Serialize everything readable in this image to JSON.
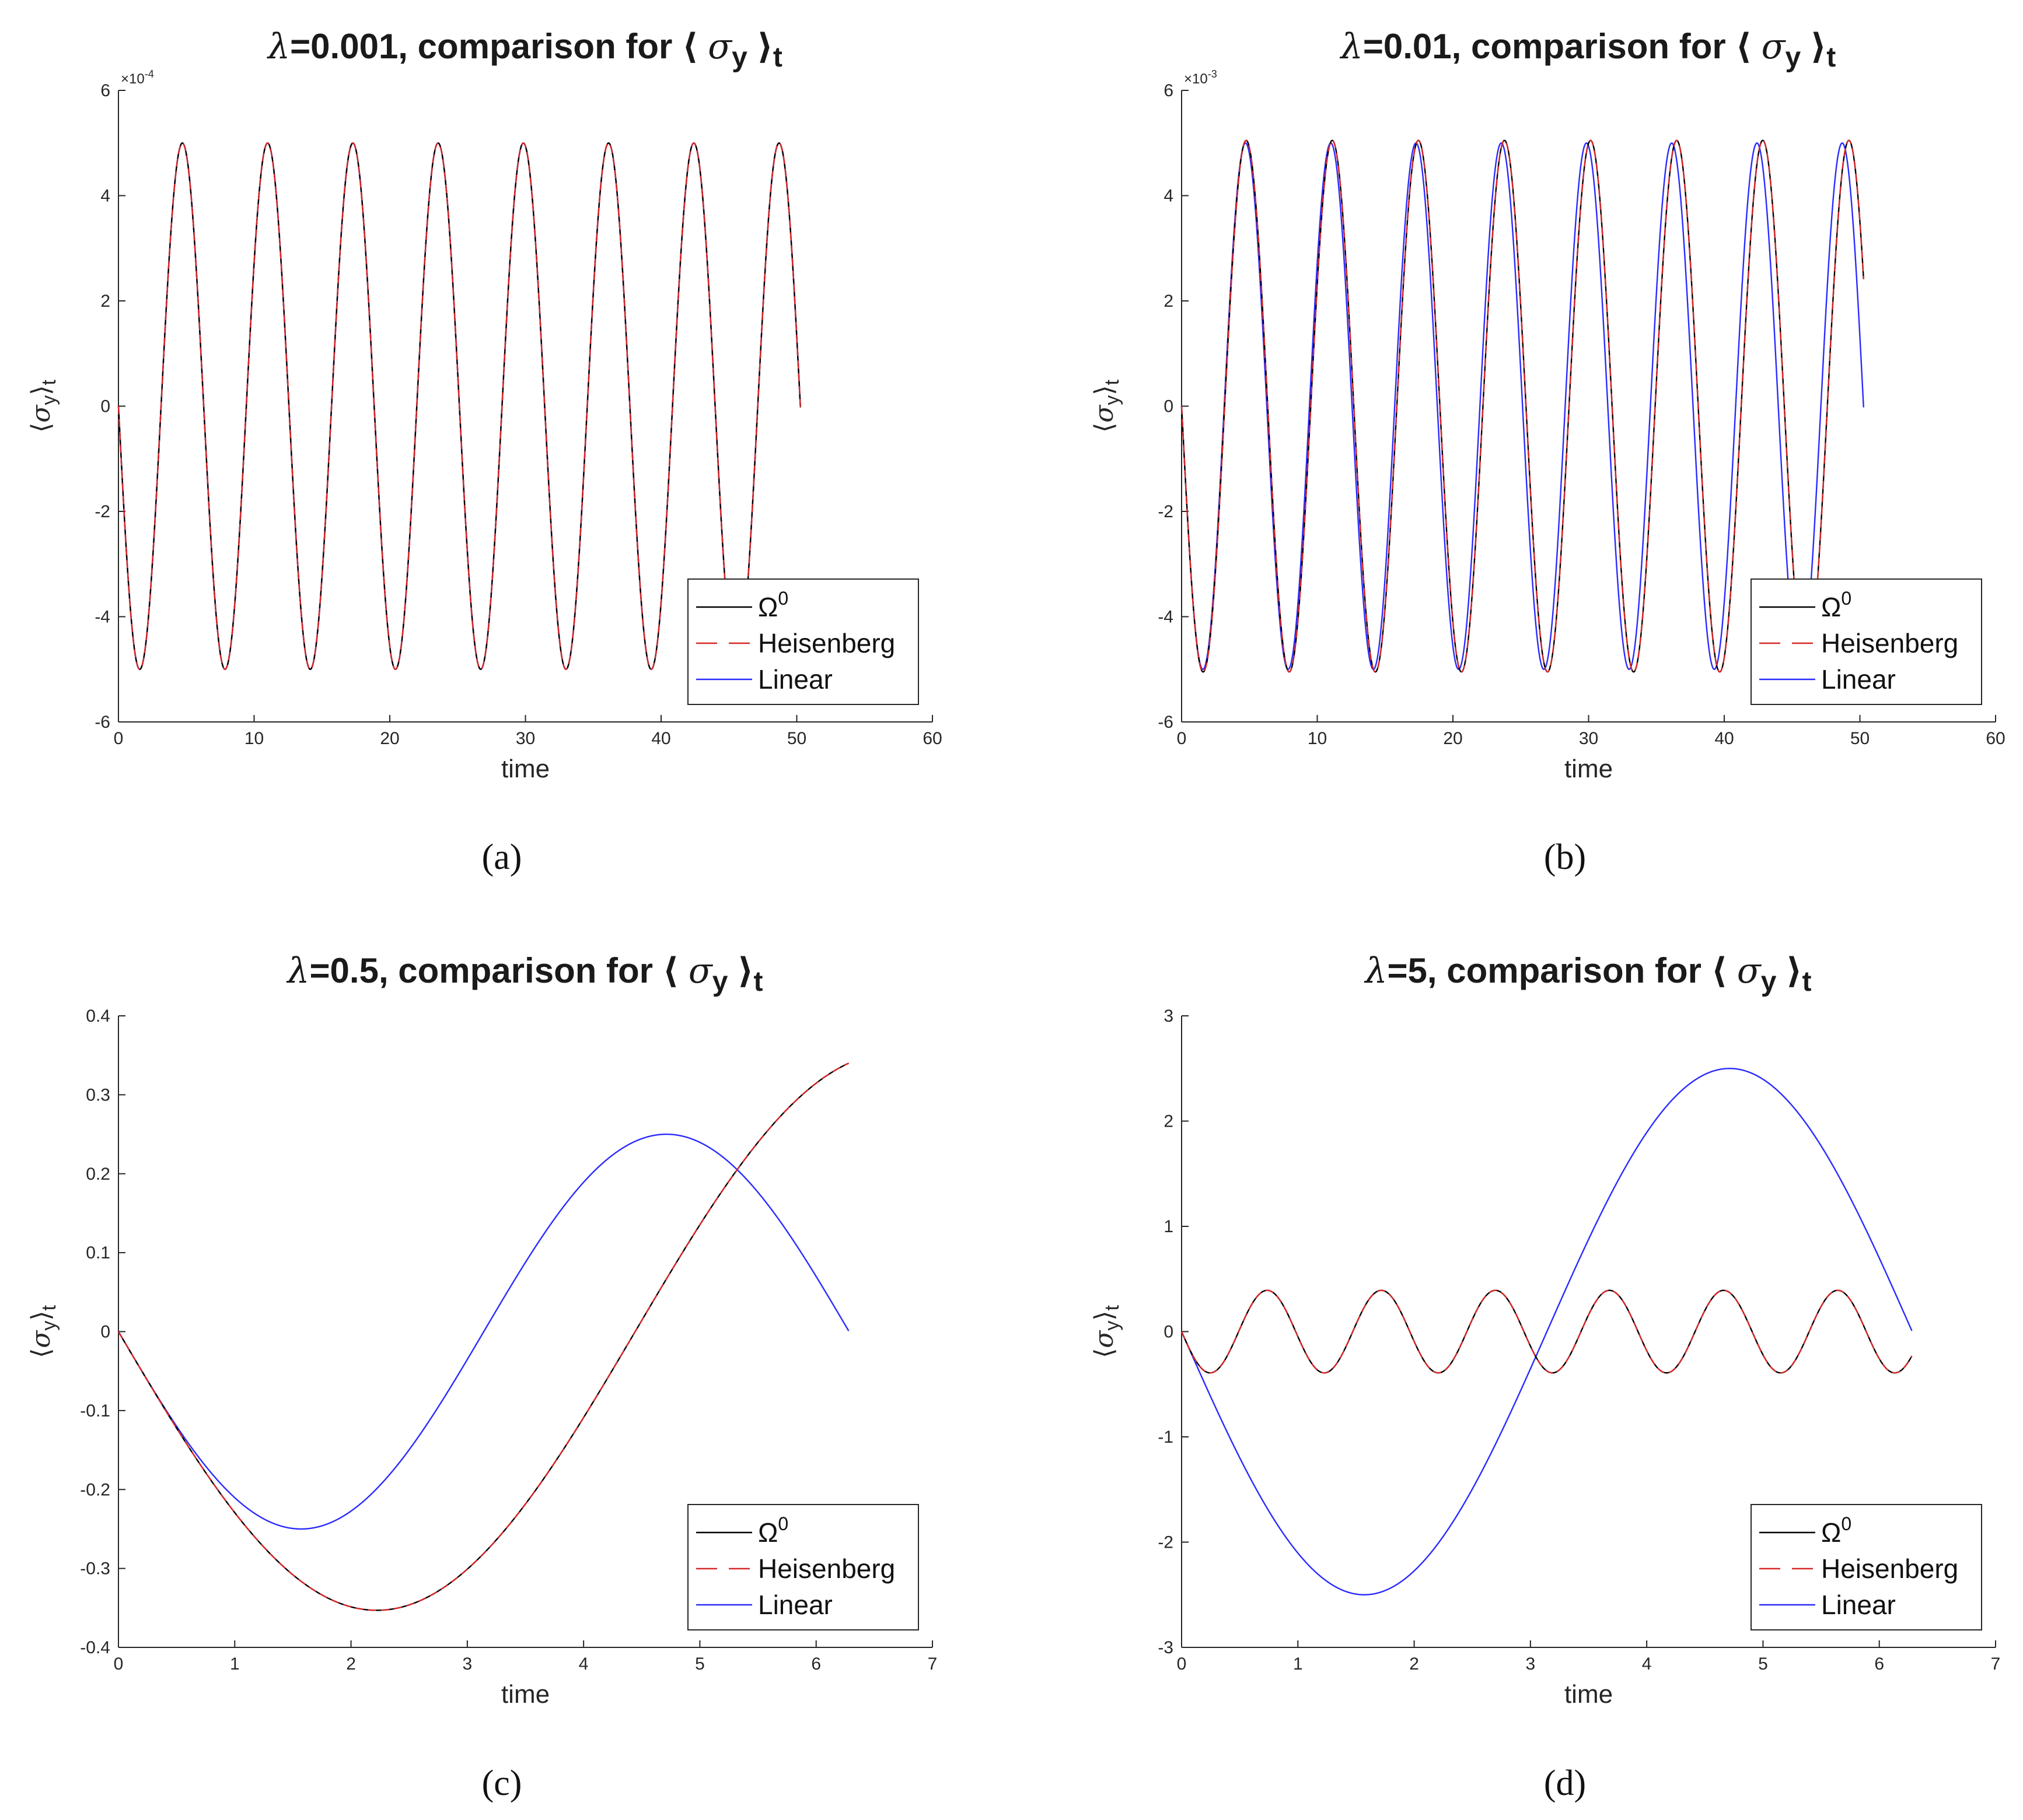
{
  "figure": {
    "panels": [
      {
        "caption": "(a)",
        "title": "λ=0.001, comparison for ⟨ σ_y ⟩_t",
        "title_parts": {
          "lambda": "λ",
          "rest": "=0.001, comparison for ⟨ ",
          "sigma": "σ",
          "sub": "y",
          "close": " ⟩",
          "tsub": "t"
        },
        "ylabel_parts": {
          "open": "⟨",
          "sigma": "σ",
          "sub": "y",
          "close": "⟩",
          "tsub": "t"
        },
        "xlabel": "time",
        "exponent_label": "×10",
        "exponent_power": "-4",
        "legend": [
          "Ω",
          "Heisenberg",
          "Linear"
        ],
        "legend_sup": "0"
      },
      {
        "caption": "(b)",
        "title": "λ=0.01, comparison for ⟨ σ_y ⟩_t",
        "title_parts": {
          "lambda": "λ",
          "rest": "=0.01, comparison for ⟨ ",
          "sigma": "σ",
          "sub": "y",
          "close": " ⟩",
          "tsub": "t"
        },
        "ylabel_parts": {
          "open": "⟨",
          "sigma": "σ",
          "sub": "y",
          "close": "⟩",
          "tsub": "t"
        },
        "xlabel": "time",
        "exponent_label": "×10",
        "exponent_power": "-3",
        "legend": [
          "Ω",
          "Heisenberg",
          "Linear"
        ],
        "legend_sup": "0"
      },
      {
        "caption": "(c)",
        "title": "λ=0.5, comparison for ⟨ σ_y ⟩_t",
        "title_parts": {
          "lambda": "λ",
          "rest": "=0.5, comparison for ⟨ ",
          "sigma": "σ",
          "sub": "y",
          "close": " ⟩",
          "tsub": "t"
        },
        "ylabel_parts": {
          "open": "⟨",
          "sigma": "σ",
          "sub": "y",
          "close": "⟩",
          "tsub": "t"
        },
        "xlabel": "time",
        "exponent_label": "",
        "exponent_power": "",
        "legend": [
          "Ω",
          "Heisenberg",
          "Linear"
        ],
        "legend_sup": "0"
      },
      {
        "caption": "(d)",
        "title": "λ=5, comparison for ⟨ σ_y ⟩_t",
        "title_parts": {
          "lambda": "λ",
          "rest": "=5, comparison for ⟨ ",
          "sigma": "σ",
          "sub": "y",
          "close": " ⟩",
          "tsub": "t"
        },
        "ylabel_parts": {
          "open": "⟨",
          "sigma": "σ",
          "sub": "y",
          "close": "⟩",
          "tsub": "t"
        },
        "xlabel": "time",
        "exponent_label": "",
        "exponent_power": "",
        "legend": [
          "Ω",
          "Heisenberg",
          "Linear"
        ],
        "legend_sup": "0"
      }
    ]
  },
  "colors": {
    "omega0": "#000000",
    "heisenberg": "#d62728",
    "linear": "#2a2aff"
  },
  "chart_data": [
    {
      "type": "line",
      "title": "λ=0.001, comparison for ⟨ σ_y ⟩_t",
      "xlabel": "time",
      "ylabel": "⟨σ_y⟩_t",
      "xlim": [
        0,
        60
      ],
      "ylim": [
        -6,
        6
      ],
      "xticks": [
        0,
        10,
        20,
        30,
        40,
        50,
        60
      ],
      "yticks": [
        -6,
        -4,
        -2,
        0,
        2,
        4,
        6
      ],
      "y_scale_exponent": -4,
      "x_range": [
        0,
        50.27
      ],
      "legend_position": "bottom-right",
      "grid": false,
      "series": [
        {
          "name": "Ω0",
          "style": "solid",
          "color": "#000000",
          "formula": "-A*sin(w*t)",
          "A": 5.0,
          "w": 1.0
        },
        {
          "name": "Heisenberg",
          "style": "dashed",
          "color": "#d62728",
          "formula": "-A*sin(w*t)",
          "A": 5.0,
          "w": 1.0
        },
        {
          "name": "Linear",
          "style": "solid",
          "color": "#2a2aff",
          "formula": "-A*sin(w*t)",
          "A": 5.0,
          "w": 1.0
        }
      ]
    },
    {
      "type": "line",
      "title": "λ=0.01, comparison for ⟨ σ_y ⟩_t",
      "xlabel": "time",
      "ylabel": "⟨σ_y⟩_t",
      "xlim": [
        0,
        60
      ],
      "ylim": [
        -6,
        6
      ],
      "xticks": [
        0,
        10,
        20,
        30,
        40,
        50,
        60
      ],
      "yticks": [
        -6,
        -4,
        -2,
        0,
        2,
        4,
        6
      ],
      "y_scale_exponent": -3,
      "x_range": [
        0,
        50.27
      ],
      "legend_position": "bottom-right",
      "grid": false,
      "series": [
        {
          "name": "Ω0",
          "style": "solid",
          "color": "#000000",
          "formula": "-A*sin(w*t)",
          "A": 5.05,
          "w": 0.99
        },
        {
          "name": "Heisenberg",
          "style": "dashed",
          "color": "#d62728",
          "formula": "-A*sin(w*t)",
          "A": 5.05,
          "w": 0.99
        },
        {
          "name": "Linear",
          "style": "solid",
          "color": "#2a2aff",
          "formula": "-A*sin(w*t)",
          "A": 5.0,
          "w": 1.0
        }
      ]
    },
    {
      "type": "line",
      "title": "λ=0.5, comparison for ⟨ σ_y ⟩_t",
      "xlabel": "time",
      "ylabel": "⟨σ_y⟩_t",
      "xlim": [
        0,
        7
      ],
      "ylim": [
        -0.4,
        0.4
      ],
      "xticks": [
        0,
        1,
        2,
        3,
        4,
        5,
        6,
        7
      ],
      "yticks": [
        -0.4,
        -0.3,
        -0.2,
        -0.1,
        0,
        0.1,
        0.2,
        0.3,
        0.4
      ],
      "x_range": [
        0,
        6.28
      ],
      "legend_position": "bottom-right",
      "grid": false,
      "series": [
        {
          "name": "Ω0",
          "style": "solid",
          "color": "#000000",
          "formula": "-A*sin(w*t)",
          "A": 0.353,
          "w": 0.707
        },
        {
          "name": "Heisenberg",
          "style": "dashed",
          "color": "#d62728",
          "formula": "-A*sin(w*t)",
          "A": 0.353,
          "w": 0.707
        },
        {
          "name": "Linear",
          "style": "solid",
          "color": "#2a2aff",
          "formula": "-A*sin(w*t)",
          "A": 0.25,
          "w": 1.0
        }
      ]
    },
    {
      "type": "line",
      "title": "λ=5, comparison for ⟨ σ_y ⟩_t",
      "xlabel": "time",
      "ylabel": "⟨σ_y⟩_t",
      "xlim": [
        0,
        7
      ],
      "ylim": [
        -3,
        3
      ],
      "xticks": [
        0,
        1,
        2,
        3,
        4,
        5,
        6,
        7
      ],
      "yticks": [
        -3,
        -2,
        -1,
        0,
        1,
        2,
        3
      ],
      "x_range": [
        0,
        6.28
      ],
      "legend_position": "bottom-right",
      "grid": false,
      "series": [
        {
          "name": "Ω0",
          "style": "solid",
          "color": "#000000",
          "formula": "-A*sin(w*t)",
          "A": 0.392,
          "w": 6.403
        },
        {
          "name": "Heisenberg",
          "style": "dashed",
          "color": "#d62728",
          "formula": "-A*sin(w*t)",
          "A": 0.392,
          "w": 6.403
        },
        {
          "name": "Linear",
          "style": "solid",
          "color": "#2a2aff",
          "formula": "-A*sin(w*t)",
          "A": 2.5,
          "w": 1.0
        }
      ]
    }
  ]
}
